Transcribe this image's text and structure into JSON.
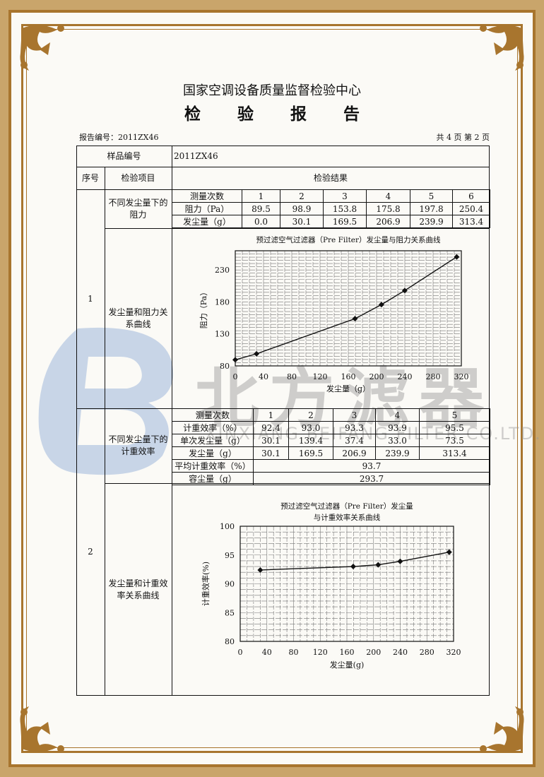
{
  "header": {
    "organization": "国家空调设备质量监督检验中心",
    "doc_title": "检 验 报 告",
    "report_no": "报告编号：2011ZX46",
    "page_info": "共 4 页 第 2 页"
  },
  "sample": {
    "label": "样品编号",
    "value": "2011ZX46"
  },
  "columns": {
    "seq": "序号",
    "item": "检验项目",
    "result": "检验结果"
  },
  "section1": {
    "seq": "1",
    "item_table": "不同发尘量下的阻力",
    "item_chart": "发尘量和阻力关系曲线",
    "rows": [
      {
        "label": "测量次数",
        "values": [
          "1",
          "2",
          "3",
          "4",
          "5",
          "6"
        ]
      },
      {
        "label": "阻力（Pa）",
        "values": [
          "89.5",
          "98.9",
          "153.8",
          "175.8",
          "197.8",
          "250.4"
        ]
      },
      {
        "label": "发尘量（g）",
        "values": [
          "0.0",
          "30.1",
          "169.5",
          "206.9",
          "239.9",
          "313.4"
        ]
      }
    ]
  },
  "section2": {
    "seq": "2",
    "item_table": "不同发尘量下的计重效率",
    "item_chart": "发尘量和计重效率关系曲线",
    "rows": [
      {
        "label": "测量次数",
        "values": [
          "1",
          "2",
          "3",
          "4",
          "5"
        ]
      },
      {
        "label": "计重效率（%）",
        "values": [
          "92.4",
          "93.0",
          "93.3",
          "93.9",
          "95.5"
        ]
      },
      {
        "label": "单次发尘量（g）",
        "values": [
          "30.1",
          "139.4",
          "37.4",
          "33.0",
          "73.5"
        ]
      },
      {
        "label": "发尘量（g）",
        "values": [
          "30.1",
          "169.5",
          "206.9",
          "239.9",
          "313.4"
        ]
      }
    ],
    "avg_label": "平均计重效率（%）",
    "avg_value": "93.7",
    "capacity_label": "容尘量（g）",
    "capacity_value": "293.7"
  },
  "watermark": {
    "brand": "北方滤器",
    "company": "XINXIANG BEIFANG FILTER CO.LTD.",
    "logo_color": "#9fb8dc"
  },
  "colors": {
    "frame_gold": "#a8752e",
    "frame_bg": "#c9a56b"
  },
  "chart_data": [
    {
      "type": "line",
      "title": "预过滤空气过滤器（Pre Filter）发尘量与阻力关系曲线",
      "xlabel": "发尘量（g）",
      "ylabel": "阻力（Pa）",
      "x": [
        0.0,
        30.1,
        169.5,
        206.9,
        239.9,
        313.4
      ],
      "y": [
        89.5,
        98.9,
        153.8,
        175.8,
        197.8,
        250.4
      ],
      "xlim": [
        0,
        320
      ],
      "ylim": [
        80,
        260
      ],
      "xticks": [
        0,
        40,
        80,
        120,
        160,
        200,
        240,
        280,
        320
      ],
      "yticks": [
        80,
        130,
        180,
        230
      ],
      "grid": true,
      "marker": "diamond"
    },
    {
      "type": "line",
      "title": [
        "预过滤空气过滤器（Pre Filter）发尘量",
        "与计重效率关系曲线"
      ],
      "xlabel": "发尘量(g)",
      "ylabel": "计重效率(%)",
      "x": [
        30.1,
        169.5,
        206.9,
        239.9,
        313.4
      ],
      "y": [
        92.4,
        93.0,
        93.3,
        93.9,
        95.5
      ],
      "xlim": [
        0,
        320
      ],
      "ylim": [
        80,
        100
      ],
      "xticks": [
        0,
        40,
        80,
        120,
        160,
        200,
        240,
        280,
        320
      ],
      "yticks": [
        80,
        85,
        90,
        95,
        100
      ],
      "grid": true,
      "marker": "diamond"
    }
  ]
}
